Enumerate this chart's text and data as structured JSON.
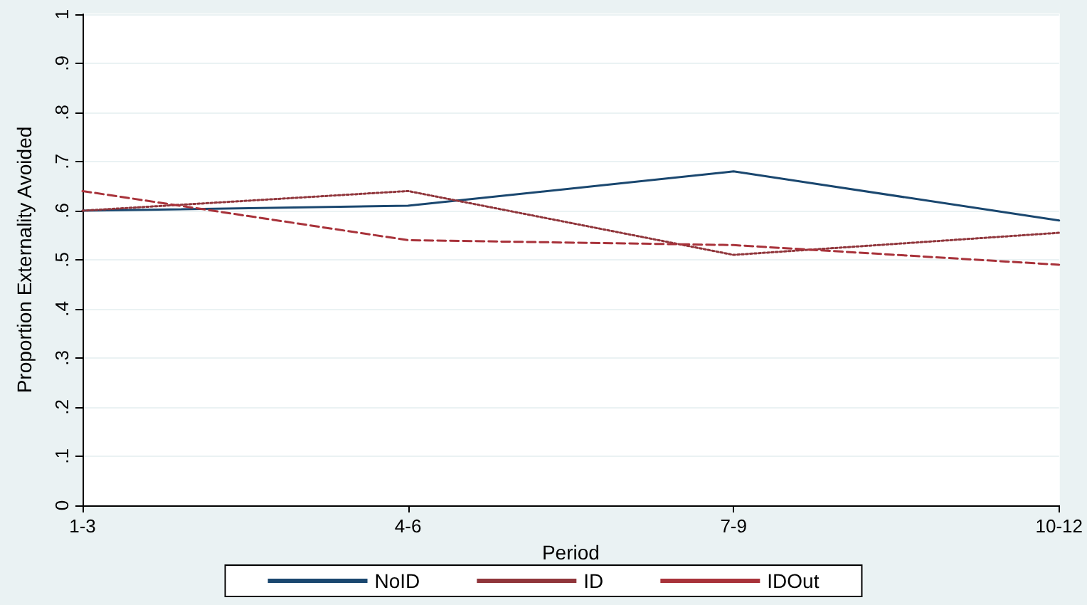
{
  "chart_data": {
    "type": "line",
    "xlabel": "Period",
    "ylabel": "Proportion Externality Avoided",
    "categories": [
      "1-3",
      "4-6",
      "7-9",
      "10-12"
    ],
    "series": [
      {
        "name": "NoID",
        "color": "#1a476f",
        "values": [
          0.6,
          0.61,
          0.68,
          0.58
        ],
        "line_style": "solid"
      },
      {
        "name": "ID",
        "color": "#90353b",
        "values": [
          0.6,
          0.64,
          0.51,
          0.555
        ],
        "line_style": "dotted"
      },
      {
        "name": "IDOut",
        "color": "#a8323a",
        "values": [
          0.64,
          0.54,
          0.53,
          0.49
        ],
        "line_style": "dashed"
      }
    ],
    "ylim": [
      0,
      1
    ],
    "yticks": [
      0,
      {
        "value": 0.1,
        "label": ".1"
      },
      {
        "value": 0.2,
        "label": ".2"
      },
      {
        "value": 0.3,
        "label": ".3"
      },
      {
        "value": 0.4,
        "label": ".4"
      },
      {
        "value": 0.5,
        "label": ".5"
      },
      {
        "value": 0.6,
        "label": ".6"
      },
      {
        "value": 0.7,
        "label": ".7"
      },
      {
        "value": 0.8,
        "label": ".8"
      },
      {
        "value": 0.9,
        "label": ".9"
      },
      1
    ],
    "grid": "y",
    "legend": "bottom",
    "marker": "none"
  }
}
